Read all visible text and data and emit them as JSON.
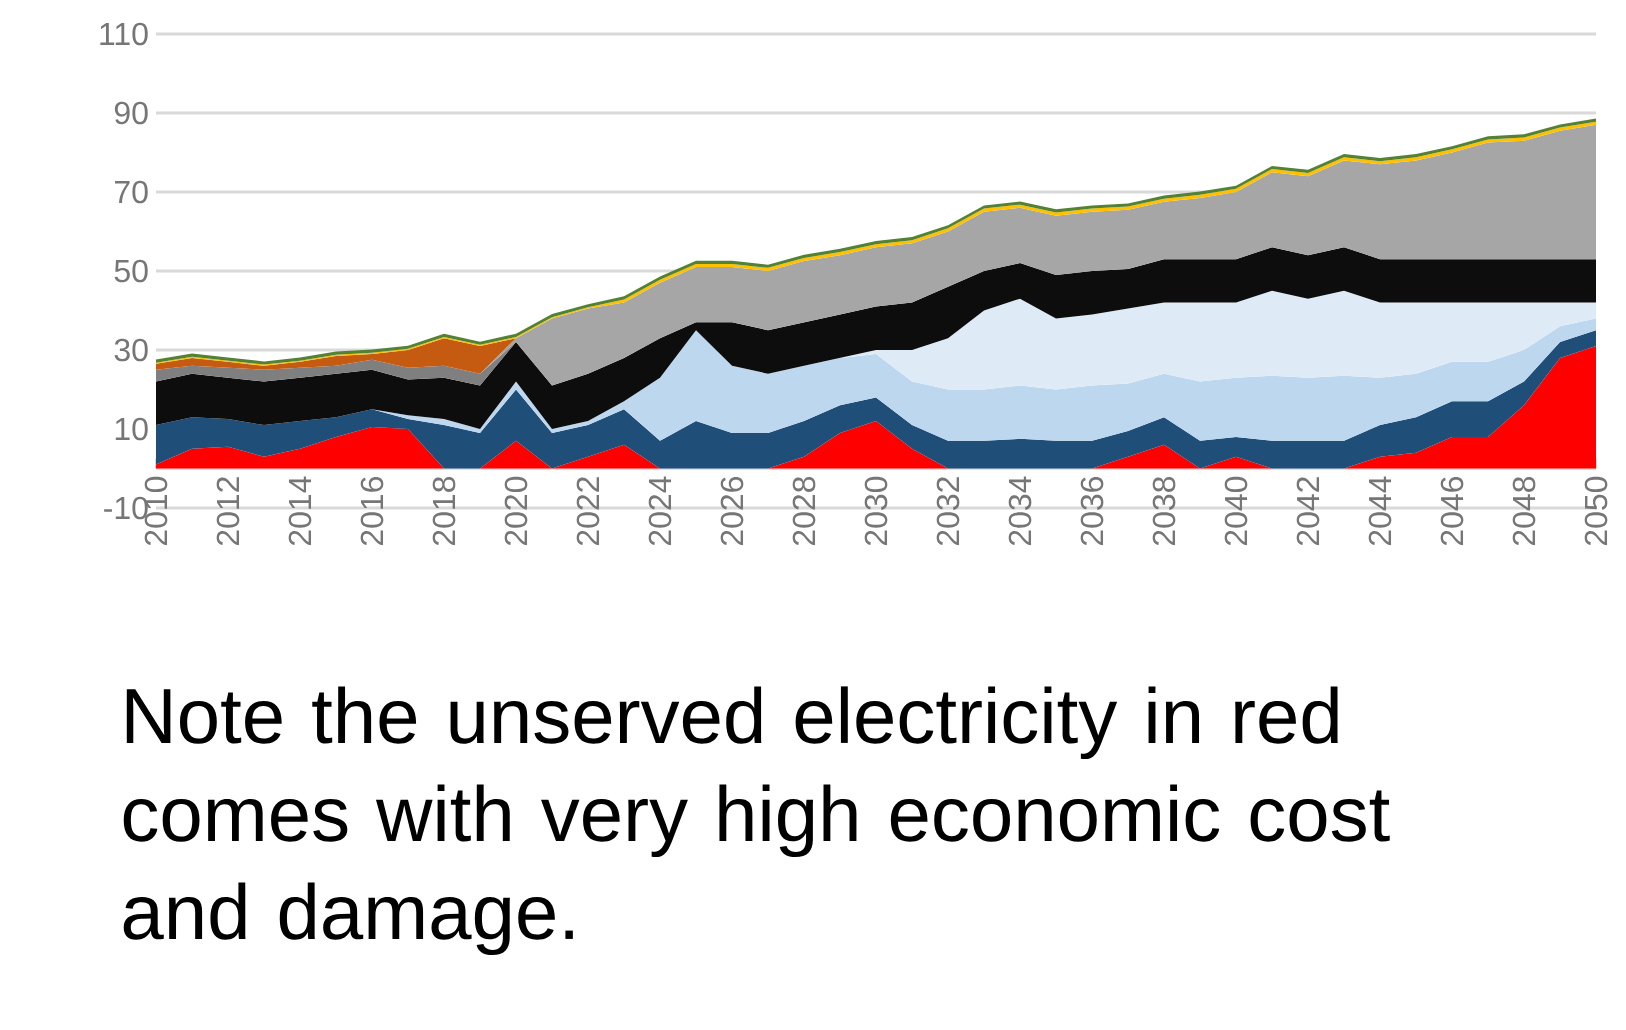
{
  "chart_data": {
    "type": "area",
    "stacked": true,
    "grid": "y",
    "x": [
      2010,
      2011,
      2012,
      2013,
      2014,
      2015,
      2016,
      2017,
      2018,
      2019,
      2020,
      2021,
      2022,
      2023,
      2024,
      2025,
      2026,
      2027,
      2028,
      2029,
      2030,
      2031,
      2032,
      2033,
      2034,
      2035,
      2036,
      2037,
      2038,
      2039,
      2040,
      2041,
      2042,
      2043,
      2044,
      2045,
      2046,
      2047,
      2048,
      2049,
      2050
    ],
    "xlim": [
      2010,
      2050
    ],
    "xticks": [
      2010,
      2012,
      2014,
      2016,
      2018,
      2020,
      2022,
      2024,
      2026,
      2028,
      2030,
      2032,
      2034,
      2036,
      2038,
      2040,
      2042,
      2044,
      2046,
      2048,
      2050
    ],
    "ylim": [
      -10,
      110
    ],
    "yticks": [
      -10,
      10,
      30,
      50,
      70,
      90,
      110
    ],
    "series": [
      {
        "color": "#ff0000",
        "values": [
          1,
          5,
          5.5,
          3,
          5,
          8,
          10.5,
          10,
          0,
          0,
          7,
          0,
          3,
          6,
          0,
          0,
          0,
          0,
          3,
          9,
          12,
          5,
          0,
          0,
          0,
          0,
          0,
          3,
          6,
          0,
          3,
          0,
          0,
          0,
          3,
          4,
          8,
          8,
          16,
          28,
          31
        ]
      },
      {
        "color": "#1f4e79",
        "values": [
          10,
          8,
          7,
          8,
          7,
          5,
          4.5,
          2.5,
          11,
          9,
          13,
          9,
          8,
          9,
          7,
          12,
          9,
          9,
          9,
          7,
          6,
          6,
          7,
          7,
          7.5,
          7,
          7,
          6.5,
          7,
          7,
          5,
          7,
          7,
          7,
          8,
          9,
          9,
          9,
          6,
          4,
          4
        ]
      },
      {
        "color": "#bdd7ee",
        "values": [
          null,
          null,
          null,
          null,
          null,
          null,
          0,
          1,
          1.5,
          1,
          2,
          1,
          1,
          2,
          16,
          23,
          17,
          15,
          14,
          12,
          11,
          11,
          13,
          13,
          13.5,
          13,
          14,
          12,
          11,
          15,
          15,
          16.5,
          16,
          16.5,
          12,
          11,
          10,
          10,
          8,
          4,
          3
        ]
      },
      {
        "color": "#deebf7",
        "values": [
          null,
          null,
          null,
          null,
          null,
          null,
          null,
          null,
          null,
          null,
          null,
          null,
          null,
          null,
          null,
          null,
          null,
          null,
          null,
          0,
          1,
          8,
          13,
          20,
          22,
          18,
          18,
          19,
          18,
          20,
          19,
          21.5,
          20,
          21.5,
          19,
          18,
          15,
          15,
          12,
          6,
          4
        ]
      },
      {
        "color": "#0d0d0d",
        "values": [
          11,
          11,
          10.5,
          11,
          11,
          11,
          10,
          9,
          10.5,
          11,
          10,
          11,
          12,
          11,
          10,
          2,
          11,
          11,
          11,
          11,
          11,
          12,
          13,
          10,
          9,
          11,
          11,
          10,
          11,
          11,
          11,
          11,
          11,
          11,
          11,
          11,
          11,
          11,
          11,
          11,
          11
        ]
      },
      {
        "color": "#7f7f7f",
        "values": [
          3,
          2,
          2.5,
          3,
          2.5,
          2,
          2.5,
          3,
          3,
          3,
          0,
          null,
          null,
          null,
          null,
          null,
          null,
          null,
          null,
          null,
          null,
          null,
          null,
          null,
          null,
          null,
          null,
          null,
          null,
          null,
          null,
          null,
          null,
          null,
          null,
          null,
          null,
          null,
          null,
          null,
          null
        ]
      },
      {
        "color": "#a6a6a6",
        "values": [
          null,
          null,
          null,
          null,
          null,
          null,
          null,
          null,
          null,
          0,
          1,
          17,
          16.5,
          14,
          14,
          14,
          14,
          15,
          15.5,
          15,
          15,
          15,
          14,
          15,
          14,
          15,
          15,
          15,
          14.5,
          15.5,
          17,
          19,
          20,
          22,
          24,
          25,
          27,
          29.5,
          30,
          32.5,
          34
        ]
      },
      {
        "color": "#c55a11",
        "values": [
          1.5,
          2,
          1.5,
          1,
          1.5,
          2.5,
          1.5,
          4.5,
          7,
          7,
          0,
          null,
          null,
          null,
          null,
          null,
          null,
          null,
          null,
          null,
          null,
          null,
          null,
          null,
          null,
          null,
          null,
          null,
          null,
          null,
          null,
          null,
          null,
          null,
          null,
          null,
          null,
          null,
          null,
          null,
          null
        ]
      },
      {
        "color": "#ffc000",
        "values": [
          0.3,
          0.3,
          0.3,
          0.3,
          0.3,
          0.3,
          0.3,
          0.3,
          0.3,
          0.3,
          0.3,
          0.3,
          0.3,
          0.8,
          0.8,
          0.8,
          0.8,
          0.8,
          0.8,
          0.8,
          0.8,
          0.8,
          0.8,
          0.8,
          0.8,
          0.8,
          0.8,
          0.8,
          0.8,
          0.8,
          0.8,
          0.8,
          0.8,
          0.8,
          0.8,
          0.8,
          0.8,
          0.8,
          0.8,
          0.8,
          0.8
        ]
      },
      {
        "color": "#548235",
        "values": [
          0.8,
          0.8,
          0.8,
          0.8,
          0.8,
          0.8,
          0.8,
          0.8,
          0.8,
          0.8,
          0.8,
          0.8,
          0.8,
          0.8,
          0.8,
          0.8,
          0.8,
          0.8,
          0.8,
          0.8,
          0.8,
          0.8,
          0.8,
          0.8,
          0.8,
          0.8,
          0.8,
          0.8,
          0.8,
          0.8,
          0.8,
          0.8,
          0.8,
          0.8,
          0.8,
          0.8,
          0.8,
          0.8,
          0.8,
          0.8,
          0.8
        ]
      }
    ],
    "annotations": [
      "Note the unserved electricity in red comes with very high economic cost and damage."
    ]
  }
}
